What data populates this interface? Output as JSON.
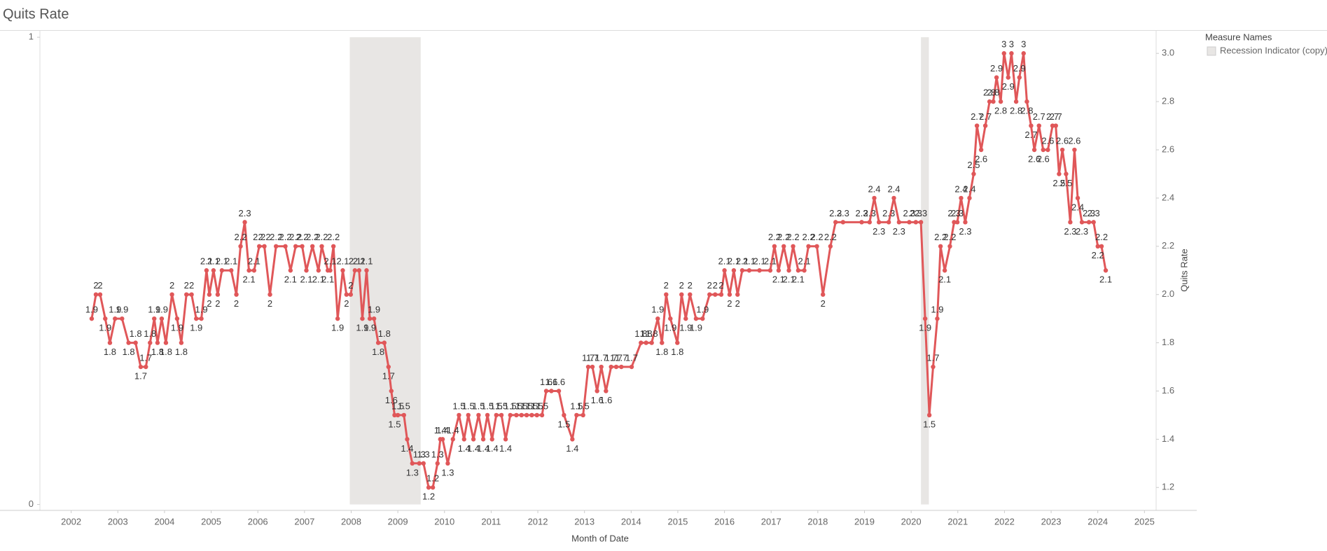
{
  "chart_data": {
    "type": "line",
    "title": "Quits Rate",
    "x_label": "Month of Date",
    "y_label": "Quits Rate",
    "legend_title": "Measure Names",
    "color": "#e05759",
    "x": [
      2002.44,
      2002.53,
      2002.62,
      2002.73,
      2002.83,
      2002.94,
      2003.09,
      2003.23,
      2003.38,
      2003.49,
      2003.6,
      2003.69,
      2003.78,
      2003.85,
      2003.94,
      2004.03,
      2004.16,
      2004.27,
      2004.36,
      2004.47,
      2004.58,
      2004.68,
      2004.79,
      2004.9,
      2004.96,
      2005.05,
      2005.14,
      2005.23,
      2005.43,
      2005.54,
      2005.63,
      2005.72,
      2005.81,
      2005.92,
      2006.03,
      2006.14,
      2006.26,
      2006.39,
      2006.59,
      2006.7,
      2006.81,
      2006.95,
      2007.04,
      2007.17,
      2007.3,
      2007.37,
      2007.5,
      2007.55,
      2007.62,
      2007.71,
      2007.82,
      2007.9,
      2007.99,
      2008.08,
      2008.17,
      2008.24,
      2008.33,
      2008.4,
      2008.49,
      2008.58,
      2008.71,
      2008.8,
      2008.86,
      2008.93,
      2009.0,
      2009.13,
      2009.2,
      2009.31,
      2009.46,
      2009.55,
      2009.66,
      2009.75,
      2009.85,
      2009.91,
      2009.96,
      2010.07,
      2010.18,
      2010.31,
      2010.42,
      2010.51,
      2010.62,
      2010.73,
      2010.83,
      2010.92,
      2011.02,
      2011.11,
      2011.22,
      2011.31,
      2011.41,
      2011.54,
      2011.65,
      2011.76,
      2011.87,
      2011.98,
      2012.09,
      2012.18,
      2012.29,
      2012.45,
      2012.56,
      2012.74,
      2012.83,
      2012.97,
      2013.08,
      2013.17,
      2013.27,
      2013.36,
      2013.46,
      2013.57,
      2013.68,
      2013.79,
      2014.01,
      2014.21,
      2014.32,
      2014.44,
      2014.57,
      2014.66,
      2014.75,
      2014.84,
      2014.99,
      2015.08,
      2015.17,
      2015.26,
      2015.39,
      2015.53,
      2015.68,
      2015.8,
      2015.93,
      2016.0,
      2016.11,
      2016.2,
      2016.28,
      2016.38,
      2016.53,
      2016.75,
      2016.98,
      2017.07,
      2017.16,
      2017.27,
      2017.38,
      2017.47,
      2017.58,
      2017.71,
      2017.8,
      2017.98,
      2018.11,
      2018.27,
      2018.38,
      2018.54,
      2018.94,
      2019.11,
      2019.21,
      2019.31,
      2019.52,
      2019.63,
      2019.74,
      2019.96,
      2020.1,
      2020.21,
      2020.3,
      2020.39,
      2020.47,
      2020.56,
      2020.63,
      2020.72,
      2020.83,
      2020.92,
      2020.99,
      2021.07,
      2021.16,
      2021.25,
      2021.34,
      2021.41,
      2021.5,
      2021.59,
      2021.68,
      2021.76,
      2021.83,
      2021.92,
      2021.99,
      2022.08,
      2022.15,
      2022.25,
      2022.32,
      2022.41,
      2022.48,
      2022.57,
      2022.64,
      2022.74,
      2022.83,
      2022.93,
      2023.03,
      2023.1,
      2023.17,
      2023.24,
      2023.32,
      2023.41,
      2023.5,
      2023.57,
      2023.66,
      2023.81,
      2023.91,
      2024.0,
      2024.08,
      2024.17
    ],
    "values": [
      1.9,
      2,
      2,
      1.9,
      1.8,
      1.9,
      1.9,
      1.8,
      1.8,
      1.7,
      1.7,
      1.8,
      1.9,
      1.8,
      1.9,
      1.8,
      2,
      1.9,
      1.8,
      2,
      2,
      1.9,
      1.9,
      2.1,
      2,
      2.1,
      2,
      2.1,
      2.1,
      2,
      2.2,
      2.3,
      2.1,
      2.1,
      2.2,
      2.2,
      2,
      2.2,
      2.2,
      2.1,
      2.2,
      2.2,
      2.1,
      2.2,
      2.1,
      2.2,
      2.1,
      2.1,
      2.2,
      1.9,
      2.1,
      2,
      2,
      2.1,
      2.1,
      1.9,
      2.1,
      1.9,
      1.9,
      1.8,
      1.8,
      1.7,
      1.6,
      1.5,
      1.5,
      1.5,
      1.4,
      1.3,
      1.3,
      1.3,
      1.2,
      1.2,
      1.3,
      1.4,
      1.4,
      1.3,
      1.4,
      1.5,
      1.4,
      1.5,
      1.4,
      1.5,
      1.4,
      1.5,
      1.4,
      1.5,
      1.5,
      1.4,
      1.5,
      1.5,
      1.5,
      1.5,
      1.5,
      1.5,
      1.5,
      1.6,
      1.6,
      1.6,
      1.5,
      1.4,
      1.5,
      1.5,
      1.7,
      1.7,
      1.6,
      1.7,
      1.6,
      1.7,
      1.7,
      1.7,
      1.7,
      1.8,
      1.8,
      1.8,
      1.9,
      1.8,
      2,
      1.9,
      1.8,
      2,
      1.9,
      2,
      1.9,
      1.9,
      2,
      2,
      2,
      2.1,
      2,
      2.1,
      2,
      2.1,
      2.1,
      2.1,
      2.1,
      2.2,
      2.1,
      2.2,
      2.1,
      2.2,
      2.1,
      2.1,
      2.2,
      2.2,
      2,
      2.2,
      2.3,
      2.3,
      2.3,
      2.3,
      2.4,
      2.3,
      2.3,
      2.4,
      2.3,
      2.3,
      2.3,
      2.3,
      1.9,
      1.5,
      1.7,
      1.9,
      2.2,
      2.1,
      2.2,
      2.3,
      2.3,
      2.4,
      2.3,
      2.4,
      2.5,
      2.7,
      2.6,
      2.7,
      2.8,
      2.8,
      2.9,
      2.8,
      3,
      2.9,
      3,
      2.8,
      2.9,
      3,
      2.8,
      2.7,
      2.6,
      2.7,
      2.6,
      2.6,
      2.7,
      2.7,
      2.5,
      2.6,
      2.5,
      2.3,
      2.6,
      2.4,
      2.3,
      2.3,
      2.3,
      2.2,
      2.2,
      2.1
    ],
    "xlim": [
      2001.33,
      2025.25
    ],
    "xticks": [
      2002,
      2003,
      2004,
      2005,
      2006,
      2007,
      2008,
      2009,
      2010,
      2011,
      2012,
      2013,
      2014,
      2015,
      2016,
      2017,
      2018,
      2019,
      2020,
      2021,
      2022,
      2023,
      2024,
      2025
    ],
    "ylim": [
      1.105,
      3.095
    ],
    "yticks": [
      1.2,
      1.4,
      1.6,
      1.8,
      {
        "value": 2,
        "label": "2.0"
      },
      2.2,
      2.4,
      2.6,
      2.8,
      {
        "value": 3,
        "label": "3.0"
      }
    ],
    "y2lim": [
      -0.0127,
      1.0145
    ],
    "y2ticks": [
      0,
      1
    ],
    "recession": {
      "name": "Recession Indicator (copy)",
      "axis": "y2",
      "color": "#e8e6e4",
      "value": 1,
      "periods": [
        [
          2007.97,
          2009.49
        ],
        [
          2020.21,
          2020.38
        ]
      ]
    }
  }
}
